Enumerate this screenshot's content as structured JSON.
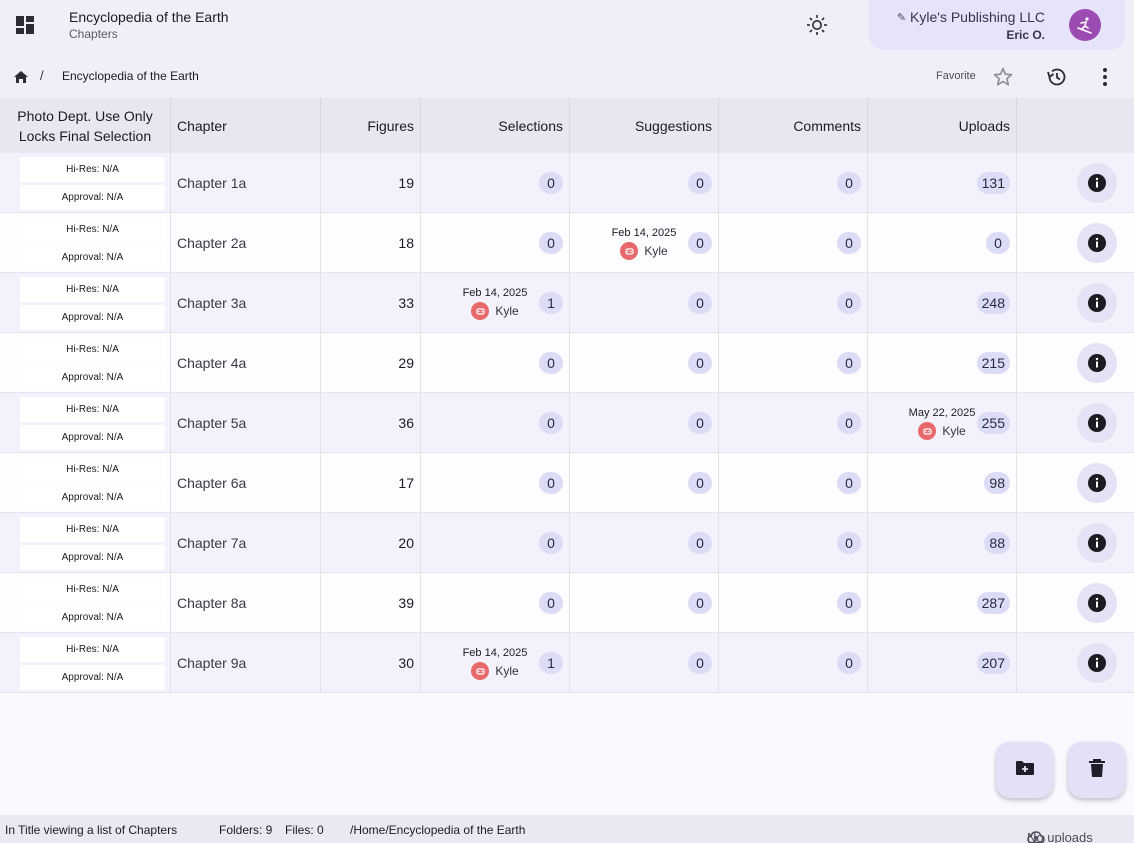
{
  "appbar": {
    "title": "Encyclopedia of the Earth",
    "subtitle": "Chapters",
    "publisher": "Kyle's Publishing LLC",
    "user": "Eric O."
  },
  "breadcrumb": {
    "current": "Encyclopedia of the Earth",
    "separator": "/",
    "favorite_label": "Favorite"
  },
  "table": {
    "headers": {
      "locks_line1": "Photo Dept. Use Only",
      "locks_line2": "Locks Final Selection",
      "chapter": "Chapter",
      "figures": "Figures",
      "selections": "Selections",
      "suggestions": "Suggestions",
      "comments": "Comments",
      "uploads": "Uploads"
    },
    "rows": [
      {
        "hires": "Hi-Res: N/A",
        "approval": "Approval: N/A",
        "chapter": "Chapter 1a",
        "figures": "19",
        "selections": "0",
        "suggestions": "0",
        "comments": "0",
        "uploads": "131"
      },
      {
        "hires": "Hi-Res: N/A",
        "approval": "Approval: N/A",
        "chapter": "Chapter 2a",
        "figures": "18",
        "selections": "0",
        "suggestions": "0",
        "comments": "0",
        "uploads": "0",
        "suggestions_activity": {
          "date": "Feb 14, 2025",
          "name": "Kyle"
        }
      },
      {
        "hires": "Hi-Res: N/A",
        "approval": "Approval: N/A",
        "chapter": "Chapter 3a",
        "figures": "33",
        "selections": "1",
        "suggestions": "0",
        "comments": "0",
        "uploads": "248",
        "selections_activity": {
          "date": "Feb 14, 2025",
          "name": "Kyle"
        }
      },
      {
        "hires": "Hi-Res: N/A",
        "approval": "Approval: N/A",
        "chapter": "Chapter 4a",
        "figures": "29",
        "selections": "0",
        "suggestions": "0",
        "comments": "0",
        "uploads": "215"
      },
      {
        "hires": "Hi-Res: N/A",
        "approval": "Approval: N/A",
        "chapter": "Chapter 5a",
        "figures": "36",
        "selections": "0",
        "suggestions": "0",
        "comments": "0",
        "uploads": "255",
        "uploads_activity": {
          "date": "May 22, 2025",
          "name": "Kyle"
        }
      },
      {
        "hires": "Hi-Res: N/A",
        "approval": "Approval: N/A",
        "chapter": "Chapter 6a",
        "figures": "17",
        "selections": "0",
        "suggestions": "0",
        "comments": "0",
        "uploads": "98"
      },
      {
        "hires": "Hi-Res: N/A",
        "approval": "Approval: N/A",
        "chapter": "Chapter 7a",
        "figures": "20",
        "selections": "0",
        "suggestions": "0",
        "comments": "0",
        "uploads": "88"
      },
      {
        "hires": "Hi-Res: N/A",
        "approval": "Approval: N/A",
        "chapter": "Chapter 8a",
        "figures": "39",
        "selections": "0",
        "suggestions": "0",
        "comments": "0",
        "uploads": "287"
      },
      {
        "hires": "Hi-Res: N/A",
        "approval": "Approval: N/A",
        "chapter": "Chapter 9a",
        "figures": "30",
        "selections": "1",
        "suggestions": "0",
        "comments": "0",
        "uploads": "207",
        "selections_activity": {
          "date": "Feb 14, 2025",
          "name": "Kyle"
        }
      }
    ]
  },
  "statusbar": {
    "context": "In Title viewing a list of Chapters",
    "folders": "Folders: 9",
    "files": "Files: 0",
    "path": "/Home/Encyclopedia of the Earth",
    "uploads": "No uploads"
  },
  "icons": {
    "menu": "dashboard-icon",
    "theme": "sun-icon",
    "avatar": "skier-icon",
    "home": "home-icon",
    "favorite": "star-outline-icon",
    "history": "history-icon",
    "more": "more-vert-icon",
    "info": "info-icon",
    "new_folder": "create-new-folder-icon",
    "delete": "trash-icon",
    "uploads": "cloud-upload-icon"
  },
  "colors": {
    "accent_surface": "#e6e4fb",
    "badge": "#dcdcf6",
    "avatar": "#9c4bb3",
    "user_avatar": "#e8696b"
  }
}
